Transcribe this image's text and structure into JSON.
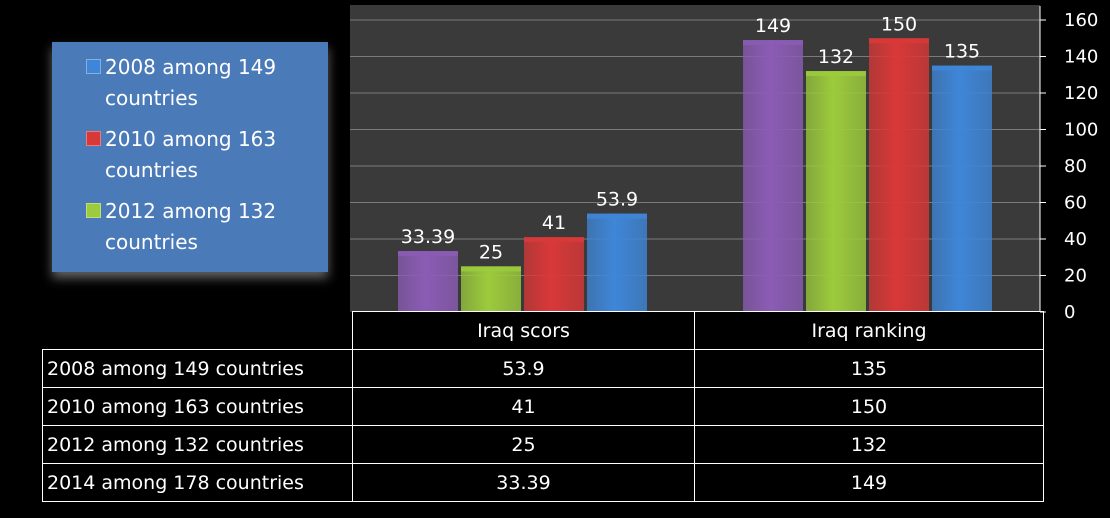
{
  "chart_data": {
    "type": "bar",
    "categories": [
      "Iraq scors",
      "Iraq ranking"
    ],
    "series": [
      {
        "name": "2014 among 178 countries",
        "values": [
          33.39,
          149
        ],
        "color": "#8b5cb5"
      },
      {
        "name": "2012 among 132 countries",
        "values": [
          25,
          132
        ],
        "color": "#9ccb3c"
      },
      {
        "name": "2010 among 163 countries",
        "values": [
          41,
          150
        ],
        "color": "#d93838"
      },
      {
        "name": "2008 among 149 countries",
        "values": [
          53.9,
          135
        ],
        "color": "#3f86d8"
      }
    ],
    "data_labels": [
      [
        "33.39",
        "149"
      ],
      [
        "25",
        "132"
      ],
      [
        "41",
        "150"
      ],
      [
        "53.9",
        "135"
      ]
    ],
    "ylim": [
      0,
      160
    ],
    "yticks": [
      "0",
      "20",
      "40",
      "60",
      "80",
      "100",
      "120",
      "140",
      "160"
    ],
    "y_axis_position": "right",
    "grid": true,
    "legend_placement": "top-left",
    "legend": [
      {
        "label": "2008 among 149 countries",
        "color": "#3f86d8"
      },
      {
        "label": "2010 among 163 countries",
        "color": "#d93838"
      },
      {
        "label": "2012 among 132 countries",
        "color": "#9ccb3c"
      }
    ]
  },
  "table": {
    "headers": [
      "Iraq scors",
      "Iraq ranking"
    ],
    "rows": [
      {
        "label": "2008 among 149 countries",
        "values": [
          "53.9",
          "135"
        ]
      },
      {
        "label": "2010 among 163 countries",
        "values": [
          "41",
          "150"
        ]
      },
      {
        "label": "2012 among 132 countries",
        "values": [
          "25",
          "132"
        ]
      },
      {
        "label": "2014 among 178 countries",
        "values": [
          "33.39",
          "149"
        ]
      }
    ]
  }
}
